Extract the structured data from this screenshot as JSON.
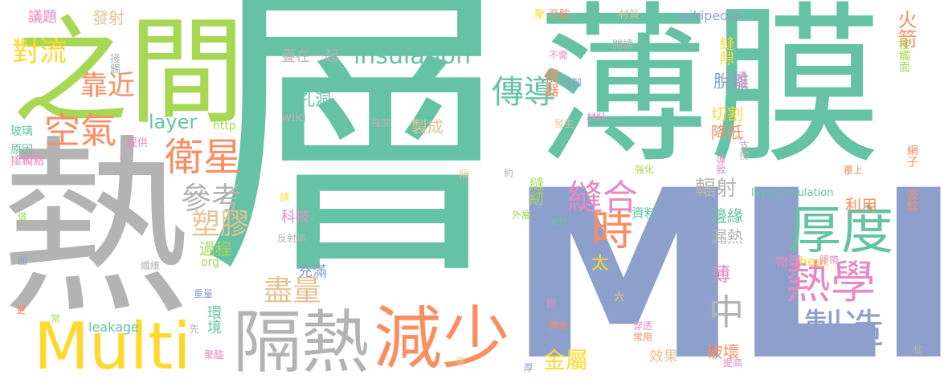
{
  "colors": {
    "teal": "#66c2a5",
    "orange": "#fc8d62",
    "blue": "#8da0cb",
    "pink": "#e78ac3",
    "lime": "#a6d854",
    "yellow": "#ffd92f",
    "tan": "#e5c494",
    "gray": "#b3b3b3"
  },
  "words": [
    {
      "text": "層",
      "color": "teal"
    },
    {
      "text": "薄膜",
      "color": "teal"
    },
    {
      "text": "MLI",
      "color": "blue"
    },
    {
      "text": "熱",
      "color": "gray"
    },
    {
      "text": "之間",
      "color": "lime"
    },
    {
      "text": "Multi",
      "color": "yellow"
    },
    {
      "text": "隔熱",
      "color": "gray"
    },
    {
      "text": "減少",
      "color": "orange"
    },
    {
      "text": "厚度",
      "color": "teal"
    },
    {
      "text": "熱學",
      "color": "pink"
    },
    {
      "text": "製造",
      "color": "blue"
    },
    {
      "text": "衛星",
      "color": "orange"
    },
    {
      "text": "空氣",
      "color": "orange"
    },
    {
      "text": "縫合",
      "color": "pink"
    },
    {
      "text": "時",
      "color": "orange"
    },
    {
      "text": "insulation",
      "color": "teal"
    },
    {
      "text": "參考",
      "color": "gray"
    },
    {
      "text": "塑膠",
      "color": "tan"
    },
    {
      "text": "對流",
      "color": "yellow"
    },
    {
      "text": "靠近",
      "color": "orange"
    },
    {
      "text": "傳導",
      "color": "teal"
    },
    {
      "text": "layer",
      "color": "teal"
    },
    {
      "text": "盡量",
      "color": "tan"
    },
    {
      "text": "中",
      "color": "gray"
    },
    {
      "text": "薄",
      "color": "pink"
    },
    {
      "text": "金屬",
      "color": "yellow"
    },
    {
      "text": "發射",
      "color": "tan"
    },
    {
      "text": "議題",
      "color": "pink"
    },
    {
      "text": "疊在一起",
      "color": "gray"
    },
    {
      "text": "輻射",
      "color": "gray"
    },
    {
      "text": "利用",
      "color": "orange"
    },
    {
      "text": "wikipedia",
      "color": "blue"
    },
    {
      "text": "火箭",
      "color": "orange"
    },
    {
      "text": "縫隙",
      "color": "yellow"
    },
    {
      "text": "脫離",
      "color": "blue"
    },
    {
      "text": "切割",
      "color": "yellow"
    },
    {
      "text": "降低",
      "color": "orange"
    },
    {
      "text": "邊緣",
      "color": "teal"
    },
    {
      "text": "漏熱",
      "color": "gray"
    },
    {
      "text": "物理",
      "color": "pink"
    },
    {
      "text": "heat",
      "color": "yellow"
    },
    {
      "text": "破壞",
      "color": "orange"
    },
    {
      "text": "效果",
      "color": "tan"
    },
    {
      "text": "孔洞",
      "color": "teal"
    },
    {
      "text": "wiki",
      "color": "gray"
    },
    {
      "text": "製成",
      "color": "tan"
    },
    {
      "text": "儀器",
      "color": "orange"
    },
    {
      "text": "科技",
      "color": "pink"
    },
    {
      "text": "加速",
      "color": "teal"
    },
    {
      "text": "充滿",
      "color": "blue"
    },
    {
      "text": "過程",
      "color": "lime"
    },
    {
      "text": "org",
      "color": "lime"
    },
    {
      "text": "環境",
      "color": "teal"
    },
    {
      "text": "leakage",
      "color": "teal"
    },
    {
      "text": "http",
      "color": "lime"
    },
    {
      "text": "資料",
      "color": "teal"
    },
    {
      "text": "縫紉",
      "color": "lime"
    },
    {
      "text": "太",
      "color": "yellow"
    },
    {
      "text": "en",
      "color": "teal"
    },
    {
      "text": "layer_insulation",
      "color": "teal"
    },
    {
      "text": "原因",
      "color": "teal"
    },
    {
      "text": "玻璃",
      "color": "teal"
    },
    {
      "text": "接觸點",
      "color": "pink"
    },
    {
      "text": "提供",
      "color": "pink"
    },
    {
      "text": "接觸",
      "color": "gray"
    },
    {
      "text": "接觸面",
      "color": "lime"
    },
    {
      "text": "網子",
      "color": "orange"
    },
    {
      "text": "波紋",
      "color": "orange"
    },
    {
      "text": "聚",
      "color": "yellow"
    },
    {
      "text": "亞胺",
      "color": "orange"
    },
    {
      "text": "材質",
      "color": "tan"
    },
    {
      "text": "閱讀",
      "color": "gray"
    },
    {
      "text": "不需",
      "color": "pink"
    },
    {
      "text": "透明",
      "color": "pink"
    },
    {
      "text": "強韌",
      "color": "blue"
    },
    {
      "text": "發生",
      "color": "tan"
    },
    {
      "text": "材料",
      "color": "pink"
    },
    {
      "text": "強度",
      "color": "gray"
    },
    {
      "text": "支撐",
      "color": "gray"
    },
    {
      "text": "覆上",
      "color": "orange"
    },
    {
      "text": "導致",
      "color": "pink"
    },
    {
      "text": "強化",
      "color": "lime"
    },
    {
      "text": "約",
      "color": "gray"
    },
    {
      "text": "隔",
      "color": "tan"
    },
    {
      "text": "請",
      "color": "yellow"
    },
    {
      "text": "反射率",
      "color": "gray"
    },
    {
      "text": "纖維",
      "color": "gray"
    },
    {
      "text": "做",
      "color": "lime"
    },
    {
      "text": "面",
      "color": "blue"
    },
    {
      "text": "重量",
      "color": "blue"
    },
    {
      "text": "更",
      "color": "orange"
    },
    {
      "text": "常",
      "color": "lime"
    },
    {
      "text": "先",
      "color": "gray"
    },
    {
      "text": "聚醯",
      "color": "pink"
    },
    {
      "text": "外層",
      "color": "lime"
    },
    {
      "text": "銀",
      "color": "pink"
    },
    {
      "text": "六",
      "color": "yellow"
    },
    {
      "text": "微米",
      "color": "orange"
    },
    {
      "text": "穿透",
      "color": "pink"
    },
    {
      "text": "常用",
      "color": "orange"
    },
    {
      "text": "熱層",
      "color": "blue"
    },
    {
      "text": "提高",
      "color": "pink"
    },
    {
      "text": "厚",
      "color": "blue"
    },
    {
      "text": "極",
      "color": "gray"
    },
    {
      "text": "膠帶",
      "color": "pink"
    },
    {
      "text": "薄",
      "color": "tan"
    },
    {
      "text": "在",
      "color": "lime"
    }
  ]
}
